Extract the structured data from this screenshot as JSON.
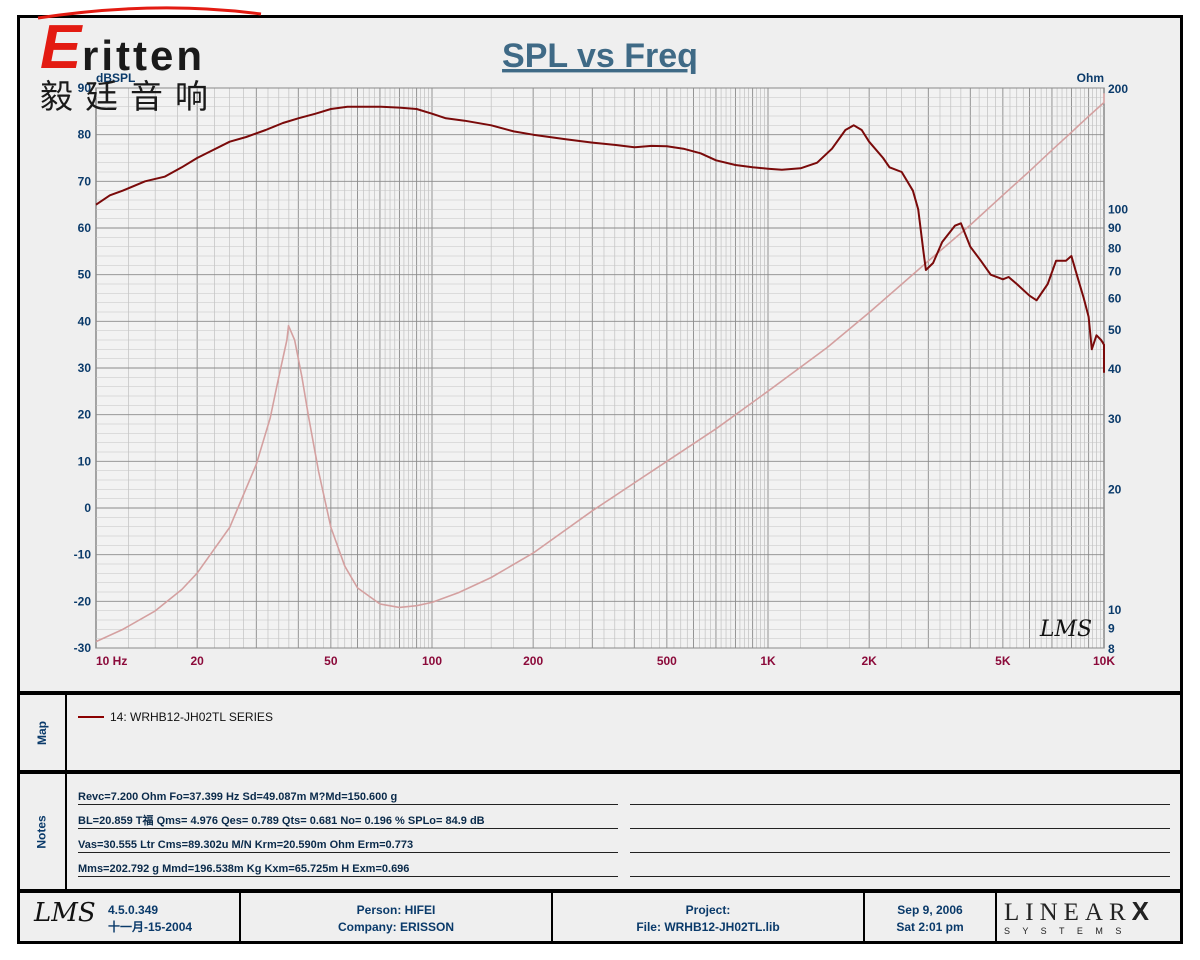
{
  "brand": {
    "logo_text": "ritten",
    "logo_initial": "E",
    "chinese_name": "毅廷音响"
  },
  "chart_data": {
    "type": "line",
    "title": "SPL vs Freq",
    "y_left_label": "dBSPL",
    "y_right_label": "Ohm",
    "x_scale": "log",
    "x_range": [
      10,
      10000
    ],
    "x_ticks": [
      {
        "v": 10,
        "label": "10  Hz"
      },
      {
        "v": 20,
        "label": "20"
      },
      {
        "v": 50,
        "label": "50"
      },
      {
        "v": 100,
        "label": "100"
      },
      {
        "v": 200,
        "label": "200"
      },
      {
        "v": 500,
        "label": "500"
      },
      {
        "v": 1000,
        "label": "1K"
      },
      {
        "v": 2000,
        "label": "2K"
      },
      {
        "v": 5000,
        "label": "5K"
      },
      {
        "v": 10000,
        "label": "10K"
      }
    ],
    "y_left_range": [
      -30,
      90
    ],
    "y_left_ticks": [
      90,
      80,
      70,
      60,
      50,
      40,
      30,
      20,
      10,
      0,
      -10,
      -20,
      -30
    ],
    "y_right_scale": "log",
    "y_right_range": [
      8,
      200
    ],
    "y_right_ticks": [
      {
        "v": 200,
        "label": "200"
      },
      {
        "v": 100,
        "label": "100"
      },
      {
        "v": 90,
        "label": "90"
      },
      {
        "v": 80,
        "label": "80"
      },
      {
        "v": 70,
        "label": "70"
      },
      {
        "v": 60,
        "label": "60"
      },
      {
        "v": 50,
        "label": "50"
      },
      {
        "v": 40,
        "label": "40"
      },
      {
        "v": 30,
        "label": "30"
      },
      {
        "v": 20,
        "label": "20"
      },
      {
        "v": 10,
        "label": "10"
      },
      {
        "v": 9,
        "label": "9"
      },
      {
        "v": 8,
        "label": "8"
      }
    ],
    "grid": true,
    "watermark": "LMS",
    "series": [
      {
        "name": "14: WRHB12-JH02TL  SERIES",
        "axis": "left",
        "color": "#7a0a0a",
        "points": [
          [
            10,
            65
          ],
          [
            11,
            67
          ],
          [
            12,
            68
          ],
          [
            14,
            70
          ],
          [
            16,
            71
          ],
          [
            18,
            73
          ],
          [
            20,
            75
          ],
          [
            22,
            76.5
          ],
          [
            25,
            78.5
          ],
          [
            28,
            79.5
          ],
          [
            32,
            81
          ],
          [
            36,
            82.5
          ],
          [
            40,
            83.5
          ],
          [
            45,
            84.5
          ],
          [
            50,
            85.5
          ],
          [
            56,
            86
          ],
          [
            63,
            86
          ],
          [
            70,
            86
          ],
          [
            80,
            85.8
          ],
          [
            90,
            85.5
          ],
          [
            100,
            84.5
          ],
          [
            110,
            83.5
          ],
          [
            125,
            83
          ],
          [
            150,
            82
          ],
          [
            175,
            80.7
          ],
          [
            200,
            80
          ],
          [
            250,
            79
          ],
          [
            300,
            78.3
          ],
          [
            350,
            77.8
          ],
          [
            400,
            77.3
          ],
          [
            450,
            77.6
          ],
          [
            500,
            77.5
          ],
          [
            560,
            77
          ],
          [
            630,
            76
          ],
          [
            700,
            74.5
          ],
          [
            800,
            73.5
          ],
          [
            900,
            73
          ],
          [
            1000,
            72.7
          ],
          [
            1100,
            72.5
          ],
          [
            1250,
            72.8
          ],
          [
            1400,
            74
          ],
          [
            1550,
            77
          ],
          [
            1700,
            81
          ],
          [
            1800,
            82
          ],
          [
            1900,
            81
          ],
          [
            2000,
            78.5
          ],
          [
            2200,
            75
          ],
          [
            2300,
            73
          ],
          [
            2500,
            72
          ],
          [
            2700,
            68
          ],
          [
            2800,
            64
          ],
          [
            2900,
            55
          ],
          [
            2950,
            51
          ],
          [
            3100,
            52.5
          ],
          [
            3300,
            57
          ],
          [
            3600,
            60.5
          ],
          [
            3750,
            61
          ],
          [
            4000,
            56
          ],
          [
            4300,
            53
          ],
          [
            4600,
            50
          ],
          [
            5000,
            49
          ],
          [
            5200,
            49.5
          ],
          [
            5500,
            48
          ],
          [
            6000,
            45.5
          ],
          [
            6300,
            44.5
          ],
          [
            6800,
            48
          ],
          [
            7200,
            53
          ],
          [
            7700,
            53
          ],
          [
            8000,
            54
          ],
          [
            8300,
            50
          ],
          [
            8700,
            45
          ],
          [
            9000,
            41
          ],
          [
            9200,
            34
          ],
          [
            9500,
            37
          ],
          [
            9800,
            36
          ],
          [
            10000,
            35
          ],
          [
            10400,
            31
          ],
          [
            10800,
            29
          ]
        ]
      },
      {
        "name": "Impedance",
        "axis": "right",
        "color": "#d4a0a0",
        "points": [
          [
            10,
            8.3
          ],
          [
            12,
            8.9
          ],
          [
            15,
            9.9
          ],
          [
            18,
            11.2
          ],
          [
            20,
            12.3
          ],
          [
            25,
            16
          ],
          [
            30,
            23
          ],
          [
            33,
            30
          ],
          [
            35,
            38
          ],
          [
            37,
            47
          ],
          [
            37.4,
            51
          ],
          [
            39,
            47
          ],
          [
            41,
            38
          ],
          [
            43,
            30
          ],
          [
            46,
            22
          ],
          [
            50,
            16
          ],
          [
            55,
            12.8
          ],
          [
            60,
            11.3
          ],
          [
            70,
            10.3
          ],
          [
            80,
            10.1
          ],
          [
            90,
            10.2
          ],
          [
            100,
            10.4
          ],
          [
            120,
            11
          ],
          [
            150,
            12
          ],
          [
            200,
            13.8
          ],
          [
            300,
            17.6
          ],
          [
            500,
            23.4
          ],
          [
            700,
            28.2
          ],
          [
            1000,
            35
          ],
          [
            1500,
            45
          ],
          [
            2000,
            55
          ],
          [
            3000,
            74
          ],
          [
            4000,
            91
          ],
          [
            5000,
            108
          ],
          [
            6000,
            124
          ],
          [
            7000,
            140
          ],
          [
            8000,
            155
          ],
          [
            9000,
            170
          ],
          [
            10000,
            184
          ],
          [
            11000,
            194
          ]
        ]
      }
    ]
  },
  "map": {
    "label": "Map",
    "entry": "14: WRHB12-JH02TL  SERIES"
  },
  "notes": {
    "label": "Notes",
    "lines": [
      "Revc=7.200 Ohm  Fo=37.399 Hz  Sd=49.087m M?Md=150.600 g",
      "BL=20.859 T福  Qms= 4.976  Qes= 0.789  Qts= 0.681  No= 0.196 %  SPLo= 84.9 dB",
      "Vas=30.555 Ltr  Cms=89.302u M/N  Krm=20.590m Ohm  Erm=0.773",
      "Mms=202.792 g  Mmd=196.538m Kg  Kxm=65.725m H  Exm=0.696"
    ]
  },
  "footer": {
    "app_logo": "LMS",
    "version": "4.5.0.349",
    "version_date": "十一月-15-2004",
    "person": "Person: HIFEI",
    "company": "Company: ERISSON",
    "project": "Project:",
    "file": "File: WRHB12-JH02TL.lib",
    "date": "Sep  9, 2006",
    "time": "Sat  2:01 pm",
    "vendor_name": "LINEAR",
    "vendor_x": "X",
    "vendor_sub": "S  Y  S  T  E  M  S"
  }
}
